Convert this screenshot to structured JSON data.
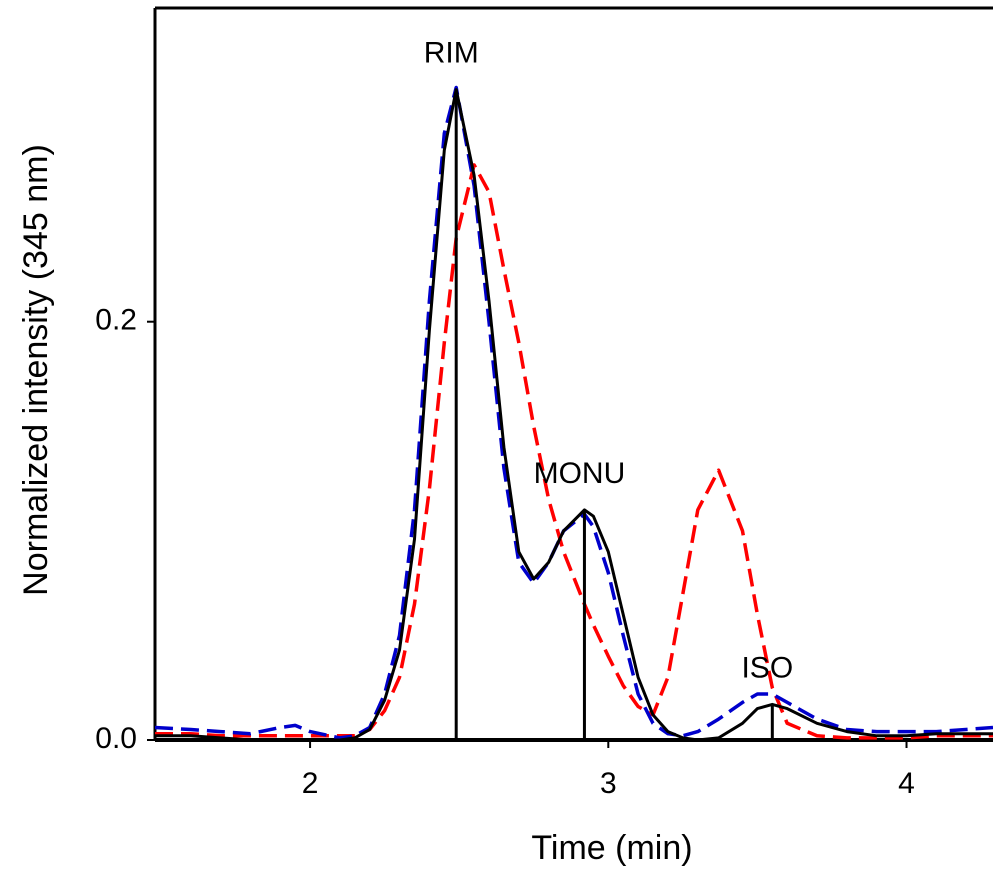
{
  "chart_data": {
    "type": "line",
    "x_label": "Time (min)",
    "y_label": "Normalized intensity (345 nm)",
    "x": [
      1.48,
      1.6,
      1.7,
      1.8,
      1.9,
      1.95,
      2.0,
      2.1,
      2.15,
      2.2,
      2.25,
      2.3,
      2.35,
      2.4,
      2.45,
      2.49,
      2.55,
      2.6,
      2.65,
      2.7,
      2.75,
      2.8,
      2.85,
      2.92,
      2.95,
      3.0,
      3.05,
      3.1,
      3.15,
      3.2,
      3.25,
      3.3,
      3.37,
      3.45,
      3.5,
      3.55,
      3.6,
      3.7,
      3.8,
      3.9,
      4.0,
      4.1,
      4.29
    ],
    "series": [
      {
        "color": "#ff0000",
        "dash": true,
        "values": [
          0.003,
          0.003,
          0.002,
          0.002,
          0.002,
          0.002,
          0.002,
          0.002,
          0.002,
          0.005,
          0.014,
          0.03,
          0.065,
          0.12,
          0.19,
          0.24,
          0.275,
          0.262,
          0.225,
          0.19,
          0.15,
          0.115,
          0.09,
          0.065,
          0.055,
          0.04,
          0.026,
          0.016,
          0.012,
          0.03,
          0.07,
          0.11,
          0.129,
          0.1,
          0.06,
          0.025,
          0.008,
          0.002,
          0.001,
          0.001,
          0.001,
          0.002,
          0.002
        ]
      },
      {
        "color": "#0000cc",
        "dash": true,
        "values": [
          0.006,
          0.005,
          0.004,
          0.003,
          0.006,
          0.007,
          0.004,
          0.001,
          0.002,
          0.006,
          0.022,
          0.05,
          0.11,
          0.21,
          0.29,
          0.312,
          0.265,
          0.2,
          0.13,
          0.085,
          0.075,
          0.085,
          0.1,
          0.108,
          0.102,
          0.08,
          0.05,
          0.022,
          0.008,
          0.003,
          0.002,
          0.004,
          0.01,
          0.018,
          0.022,
          0.022,
          0.018,
          0.01,
          0.005,
          0.004,
          0.004,
          0.004,
          0.006
        ]
      },
      {
        "color": "#000000",
        "dash": false,
        "values": [
          0.002,
          0.002,
          0.001,
          0,
          0,
          0,
          0,
          0,
          0.001,
          0.005,
          0.019,
          0.043,
          0.096,
          0.196,
          0.282,
          0.311,
          0.27,
          0.21,
          0.14,
          0.09,
          0.077,
          0.085,
          0.1,
          0.11,
          0.107,
          0.09,
          0.06,
          0.03,
          0.012,
          0.004,
          0.001,
          0,
          0.001,
          0.008,
          0.015,
          0.017,
          0.015,
          0.008,
          0.004,
          0.002,
          0.002,
          0.003,
          0.003
        ]
      }
    ],
    "annotations": [
      {
        "text": "RIM",
        "x": 2.49,
        "y": 0.311
      },
      {
        "text": "MONU",
        "x": 2.92,
        "y": 0.11
      },
      {
        "text": "ISO",
        "x": 3.55,
        "y": 0.017
      }
    ],
    "xlim": [
      1.48,
      4.29
    ],
    "ylim": [
      0,
      0.35
    ],
    "xticks": [
      2,
      3,
      4
    ],
    "yticks": [
      {
        "value": 0,
        "label": "0.0"
      },
      0.2
    ]
  }
}
